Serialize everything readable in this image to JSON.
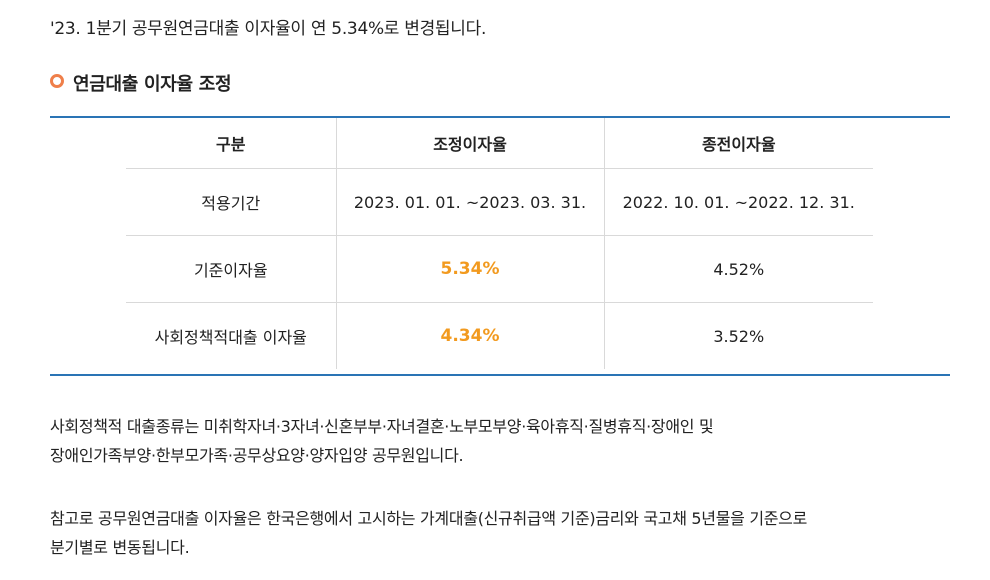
{
  "intro": "'23. 1분기 공무원연금대출 이자율이 연 5.34%로 변경됩니다.",
  "section": {
    "title": "연금대출 이자율 조정",
    "bullet_color": "#ef7f4a"
  },
  "table": {
    "headers": [
      "구분",
      "조정이자율",
      "종전이자율"
    ],
    "rows": [
      {
        "label": "적용기간",
        "adjusted": "2023. 01. 01. ~2023. 03. 31.",
        "previous": "2022. 10. 01. ~2022. 12. 31."
      },
      {
        "label": "기준이자율",
        "adjusted": "5.34%",
        "previous": "4.52%"
      },
      {
        "label": "사회정책적대출 이자율",
        "adjusted": "4.34%",
        "previous": "3.52%"
      }
    ],
    "border_color": "#2a74b5",
    "highlight_color": "#f29a1f"
  },
  "paragraphs": [
    {
      "lines": [
        "사회정책적 대출종류는 미취학자녀·3자녀·신혼부부·자녀결혼·노부모부양·육아휴직·질병휴직·장애인 및",
        "장애인가족부양·한부모가족·공무상요양·양자입양 공무원입니다."
      ]
    },
    {
      "lines": [
        "참고로 공무원연금대출 이자율은 한국은행에서 고시하는 가계대출(신규취급액 기준)금리와 국고채 5년물을 기준으로",
        "분기별로 변동됩니다."
      ]
    }
  ]
}
